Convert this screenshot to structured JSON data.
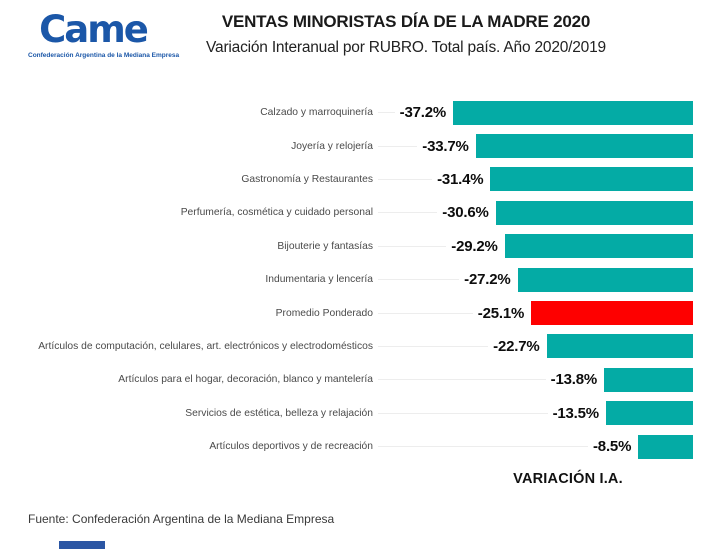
{
  "logo": {
    "brand": "Came",
    "tagline": "Confederación Argentina de la Mediana Empresa"
  },
  "header": {
    "title": "VENTAS MINORISTAS DÍA DE LA MADRE 2020",
    "subtitle": "Variación Interanual por RUBRO. Total país. Año 2020/2019"
  },
  "chart_data": {
    "type": "bar",
    "orientation": "horizontal",
    "title": "VENTAS MINORISTAS DÍA DE LA MADRE 2020",
    "subtitle": "Variación Interanual por RUBRO. Total país. Año 2020/2019",
    "xlabel": "VARIACIÓN I.A.",
    "ylabel": "",
    "xlim": [
      -40,
      0
    ],
    "grid": false,
    "bars_aligned": "right",
    "categories": [
      "Calzado y marroquinería",
      "Joyería y relojería",
      "Gastronomía y Restaurantes",
      "Perfumería, cosmética y cuidado personal",
      "Bijouterie y fantasías",
      "Indumentaria y lencería",
      "Promedio Ponderado",
      "Artículos de computación, celulares, art. electrónicos y electrodomésticos",
      "Artículos para el hogar, decoración, blanco y mantelería",
      "Servicios de estética, belleza y relajación",
      "Artículos deportivos y de recreación"
    ],
    "values": [
      -37.2,
      -33.7,
      -31.4,
      -30.6,
      -29.2,
      -27.2,
      -25.1,
      -22.7,
      -13.8,
      -13.5,
      -8.5
    ],
    "value_labels": [
      "-37.2%",
      "-33.7%",
      "-31.4%",
      "-30.6%",
      "-29.2%",
      "-27.2%",
      "-25.1%",
      "-22.7%",
      "-13.8%",
      "-13.5%",
      "-8.5%"
    ],
    "highlight_index": 6,
    "bar_color": "#04aba5",
    "highlight_color": "#fe0000"
  },
  "axis": {
    "label": "VARIACIÓN I.A."
  },
  "footer": {
    "source": "Fuente: Confederación Argentina de la Mediana Empresa"
  },
  "colors": {
    "bar_teal": "#04aba5",
    "highlight_red": "#fe0000",
    "logo_blue": "#1b57a8",
    "accent_blue": "#2b56a4"
  }
}
